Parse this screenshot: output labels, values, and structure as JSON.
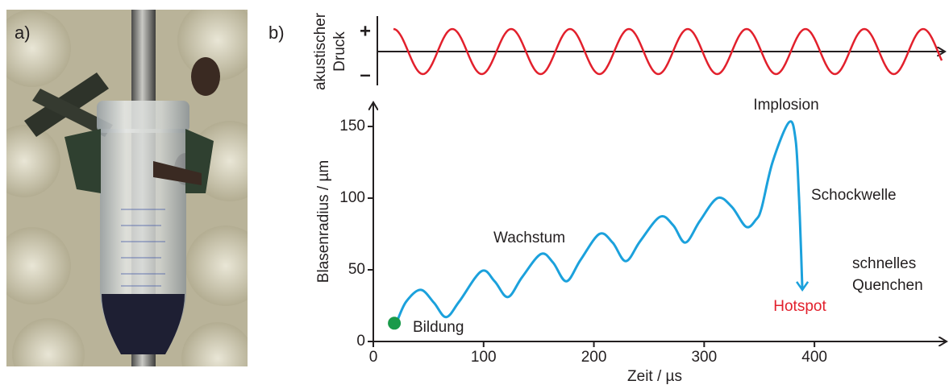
{
  "panel_labels": [
    "a)",
    "b)"
  ],
  "chart_data": {
    "type": "line",
    "xlabel": "Zeit / µs",
    "ylabel": "Blasenradius / µm",
    "pressure_label": [
      "akustischer",
      "Druck"
    ],
    "pressure_ticks": [
      "+",
      "–"
    ],
    "pressure_color": "#e2202c",
    "xlim": [
      0,
      522
    ],
    "ylim": [
      0,
      168
    ],
    "xticks": [
      0,
      100,
      200,
      300,
      400
    ],
    "yticks": [
      0,
      50,
      100,
      150
    ],
    "x": [
      22,
      30,
      43,
      55,
      66,
      78,
      98,
      110,
      122,
      135,
      152,
      163,
      175,
      188,
      205,
      217,
      229,
      242,
      260,
      272,
      283,
      296,
      312,
      325,
      338,
      347,
      352,
      362,
      377,
      383,
      386,
      388,
      389
    ],
    "series": [
      {
        "color": "#1ba1dc",
        "values": [
          15,
          28,
          36,
          27,
          17,
          28,
          49,
          42,
          31,
          45,
          61,
          55,
          42,
          57,
          75,
          69,
          56,
          70,
          87,
          81,
          69,
          84,
          100,
          94,
          80,
          85,
          93,
          125,
          153,
          140,
          100,
          60,
          36
        ]
      }
    ],
    "start_marker_color": "#1a9a4a",
    "annotations": [
      {
        "text": "Implosion",
        "color": "#231f20"
      },
      {
        "text": "Wachstum",
        "color": "#231f20"
      },
      {
        "text": "Schockwelle",
        "color": "#231f20"
      },
      {
        "text": "schnelles",
        "color": "#231f20"
      },
      {
        "text": "Quenchen",
        "color": "#231f20"
      },
      {
        "text": "Hotspot",
        "color": "#e2202c"
      },
      {
        "text": "Bildung",
        "color": "#231f20"
      }
    ]
  }
}
